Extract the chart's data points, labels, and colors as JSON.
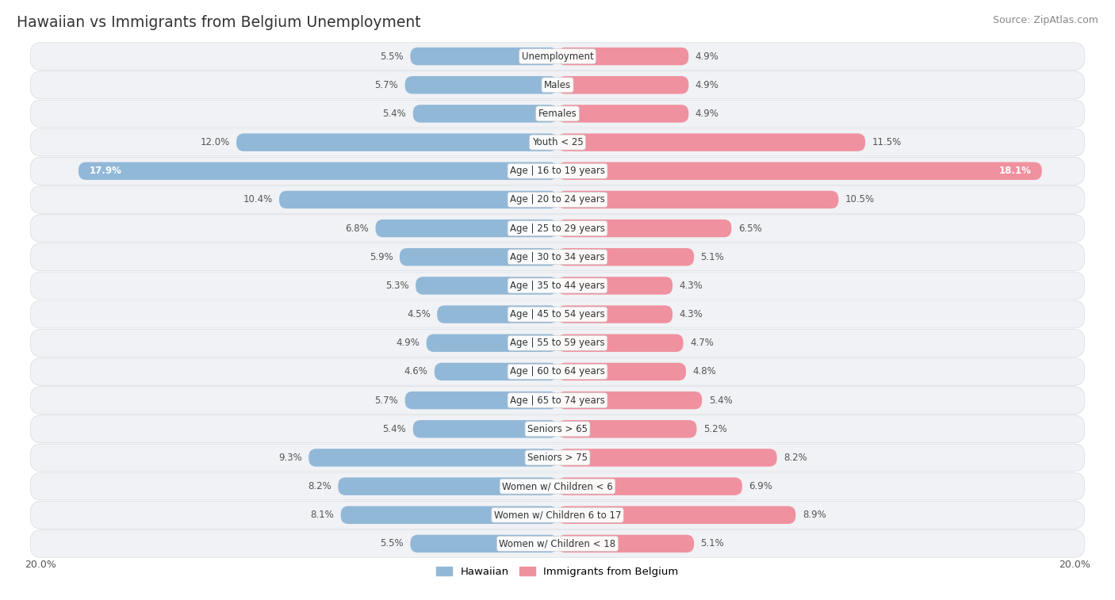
{
  "title": "Hawaiian vs Immigrants from Belgium Unemployment",
  "source": "Source: ZipAtlas.com",
  "categories": [
    "Unemployment",
    "Males",
    "Females",
    "Youth < 25",
    "Age | 16 to 19 years",
    "Age | 20 to 24 years",
    "Age | 25 to 29 years",
    "Age | 30 to 34 years",
    "Age | 35 to 44 years",
    "Age | 45 to 54 years",
    "Age | 55 to 59 years",
    "Age | 60 to 64 years",
    "Age | 65 to 74 years",
    "Seniors > 65",
    "Seniors > 75",
    "Women w/ Children < 6",
    "Women w/ Children 6 to 17",
    "Women w/ Children < 18"
  ],
  "hawaiian": [
    5.5,
    5.7,
    5.4,
    12.0,
    17.9,
    10.4,
    6.8,
    5.9,
    5.3,
    4.5,
    4.9,
    4.6,
    5.7,
    5.4,
    9.3,
    8.2,
    8.1,
    5.5
  ],
  "belgium": [
    4.9,
    4.9,
    4.9,
    11.5,
    18.1,
    10.5,
    6.5,
    5.1,
    4.3,
    4.3,
    4.7,
    4.8,
    5.4,
    5.2,
    8.2,
    6.9,
    8.9,
    5.1
  ],
  "max_val": 20.0,
  "hawaiian_color": "#92b8d8",
  "belgium_color": "#f0919f",
  "hawaiian_bar_color": "#6baed6",
  "belgium_bar_color": "#f4869a",
  "row_bg_light": "#f2f2f2",
  "row_bg_white": "#ffffff",
  "row_border": "#e0e0e0",
  "label_dark": "#555555",
  "label_white": "#ffffff"
}
